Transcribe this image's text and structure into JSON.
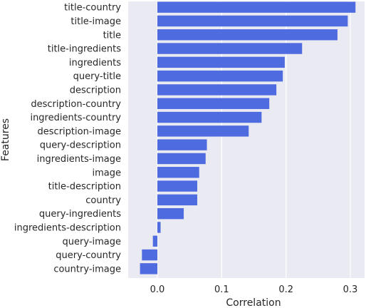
{
  "chart_data": {
    "type": "bar",
    "orientation": "horizontal",
    "xlabel": "Correlation",
    "ylabel": "Features",
    "xlim": [
      -0.03,
      0.31
    ],
    "xticks": [
      0.0,
      0.1,
      0.2,
      0.3
    ],
    "xtick_labels": [
      "0.0",
      "0.1",
      "0.2",
      "0.3"
    ],
    "grid": true,
    "categories": [
      "title-country",
      "title-image",
      "title",
      "title-ingredients",
      "ingredients",
      "query-title",
      "description",
      "description-country",
      "ingredients-country",
      "description-image",
      "query-description",
      "ingredients-image",
      "image",
      "title-description",
      "country",
      "query-ingredients",
      "ingredients-description",
      "query-image",
      "query-country",
      "country-image"
    ],
    "values": [
      0.308,
      0.296,
      0.28,
      0.225,
      0.198,
      0.195,
      0.185,
      0.174,
      0.162,
      0.142,
      0.077,
      0.075,
      0.065,
      0.062,
      0.062,
      0.041,
      0.005,
      -0.007,
      -0.024,
      -0.027
    ],
    "colors": {
      "bar": "#4F6BE0",
      "plot_background": "#EAEAF2",
      "grid": "#FFFFFF"
    }
  }
}
